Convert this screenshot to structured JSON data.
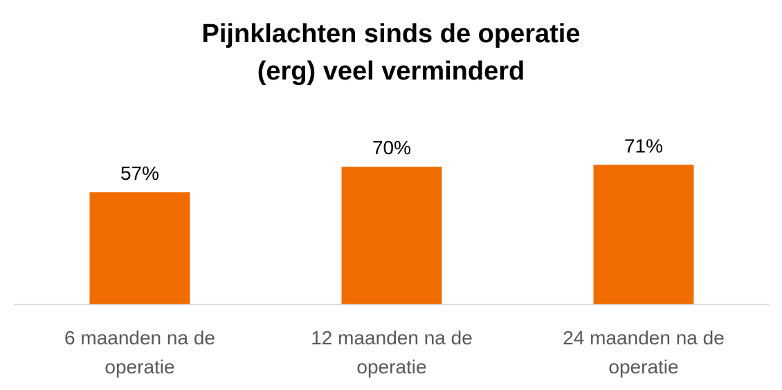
{
  "chart_data": {
    "type": "bar",
    "title": [
      "Pijnklachten sinds de operatie",
      "(erg) veel verminderd"
    ],
    "categories": [
      [
        "6 maanden na de",
        "operatie"
      ],
      [
        "12 maanden na de",
        "operatie"
      ],
      [
        "24 maanden na de",
        "operatie"
      ]
    ],
    "values": [
      57,
      70,
      71
    ],
    "data_labels": [
      "57%",
      "70%",
      "71%"
    ],
    "unit": "%",
    "ylim": [
      0,
      100
    ],
    "grid": false,
    "legend": "none",
    "colors": {
      "bar": "#F06C00",
      "axis": "#D9D9D9",
      "category_text": "#595959",
      "label_text": "#000000"
    }
  }
}
